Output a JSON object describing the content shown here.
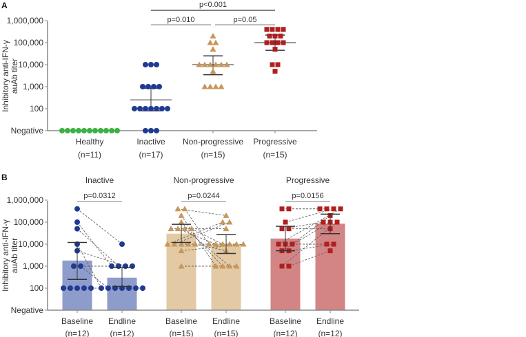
{
  "chart_data": [
    {
      "panel": "A",
      "type": "scatter",
      "ylabel": [
        "Inhibitory anti-IFN-γ",
        "auAb titer"
      ],
      "yscale": "log",
      "yticks": [
        "1,000,000",
        "100,000",
        "10,000",
        "1,000",
        "100",
        "Negative"
      ],
      "ytick_values": [
        1000000,
        100000,
        10000,
        1000,
        100,
        0
      ],
      "groups": [
        {
          "name": "Healthy",
          "n": "(n=11)",
          "color": "#3cb043",
          "marker": "circle",
          "values": [
            0,
            0,
            0,
            0,
            0,
            0,
            0,
            0,
            0,
            0,
            0
          ]
        },
        {
          "name": "Inactive",
          "n": "(n=17)",
          "color": "#1f3a93",
          "marker": "circle",
          "values": [
            10000,
            10000,
            10000,
            1000,
            1000,
            1000,
            1000,
            100,
            100,
            100,
            100,
            100,
            100,
            100,
            0,
            0,
            0
          ],
          "median": 250,
          "upper": 850,
          "lower": 80
        },
        {
          "name": "Non-progressive",
          "n": "(n=15)",
          "color": "#c8965a",
          "marker": "triangle",
          "values": [
            200000,
            100000,
            100000,
            50000,
            10000,
            10000,
            10000,
            10000,
            10000,
            10000,
            5000,
            1000,
            1000,
            1000,
            1000
          ],
          "median": 10000,
          "upper": 25000,
          "lower": 3500
        },
        {
          "name": "Progressive",
          "n": "(n=15)",
          "color": "#b01f1f",
          "marker": "square",
          "values": [
            400000,
            400000,
            400000,
            400000,
            200000,
            200000,
            200000,
            100000,
            100000,
            100000,
            100000,
            50000,
            10000,
            10000,
            5000
          ],
          "median": 100000,
          "upper": 220000,
          "lower": 45000
        }
      ],
      "comparisons": [
        {
          "from": 1,
          "to": 3,
          "label": "p<0.001"
        },
        {
          "from": 1,
          "to": 2,
          "label": "p=0.010"
        },
        {
          "from": 2,
          "to": 3,
          "label": "p=0.05"
        }
      ]
    },
    {
      "panel": "B",
      "type": "bar",
      "ylabel": [
        "Inhibitory anti-IFN-γ",
        "auAb titer"
      ],
      "yscale": "log",
      "yticks": [
        "1,000,000",
        "100,000",
        "10,000",
        "1,000",
        "100",
        "Negative"
      ],
      "ytick_values": [
        1000000,
        100000,
        10000,
        1000,
        100,
        0
      ],
      "groups": [
        {
          "title": "Inactive",
          "p": "p=0.0312",
          "color": "#1f3a93",
          "bar_color": "#8e9ccc",
          "marker": "circle",
          "baseline": {
            "label": "Baseline",
            "n": "(n=12)",
            "bar": 1800,
            "upper": 12000,
            "lower": 250
          },
          "endline": {
            "label": "Endline",
            "n": "(n=12)",
            "bar": 300,
            "upper": 850,
            "lower": 120
          },
          "pairs": [
            [
              400000,
              10000
            ],
            [
              100000,
              1000
            ],
            [
              50000,
              1000
            ],
            [
              10000,
              100
            ],
            [
              5000,
              1000
            ],
            [
              1000,
              1000
            ],
            [
              1000,
              100
            ],
            [
              100,
              100
            ],
            [
              100,
              100
            ],
            [
              100,
              100
            ],
            [
              100,
              100
            ],
            [
              100,
              100
            ]
          ]
        },
        {
          "title": "Non-progressive",
          "p": "p=0.0244",
          "color": "#c8965a",
          "bar_color": "#e3caa4",
          "marker": "triangle",
          "baseline": {
            "label": "Baseline",
            "n": "(n=15)",
            "bar": 30000,
            "upper": 80000,
            "lower": 12000
          },
          "endline": {
            "label": "Endline",
            "n": "(n=15)",
            "bar": 10000,
            "upper": 27000,
            "lower": 3800
          },
          "pairs": [
            [
              400000,
              200000
            ],
            [
              400000,
              10000
            ],
            [
              200000,
              1000
            ],
            [
              100000,
              1000
            ],
            [
              50000,
              50000
            ],
            [
              50000,
              10000
            ],
            [
              50000,
              1000
            ],
            [
              50000,
              10000
            ],
            [
              10000,
              100000
            ],
            [
              10000,
              100000
            ],
            [
              10000,
              10000
            ],
            [
              10000,
              10000
            ],
            [
              10000,
              5000
            ],
            [
              5000,
              10000
            ],
            [
              1000,
              1000
            ]
          ]
        },
        {
          "title": "Progressive",
          "p": "p=0.0156",
          "color": "#b01f1f",
          "bar_color": "#d38585",
          "marker": "square",
          "baseline": {
            "label": "Baseline",
            "n": "(n=12)",
            "bar": 18000,
            "upper": 65000,
            "lower": 5000
          },
          "endline": {
            "label": "Endline",
            "n": "(n=12)",
            "bar": 85000,
            "upper": 230000,
            "lower": 30000
          },
          "pairs": [
            [
              400000,
              400000
            ],
            [
              400000,
              400000
            ],
            [
              100000,
              400000
            ],
            [
              50000,
              100000
            ],
            [
              50000,
              50000
            ],
            [
              10000,
              400000
            ],
            [
              10000,
              10000
            ],
            [
              10000,
              200000
            ],
            [
              5000,
              100000
            ],
            [
              5000,
              10000
            ],
            [
              1000,
              100000
            ],
            [
              1000,
              5000
            ]
          ]
        }
      ]
    }
  ]
}
